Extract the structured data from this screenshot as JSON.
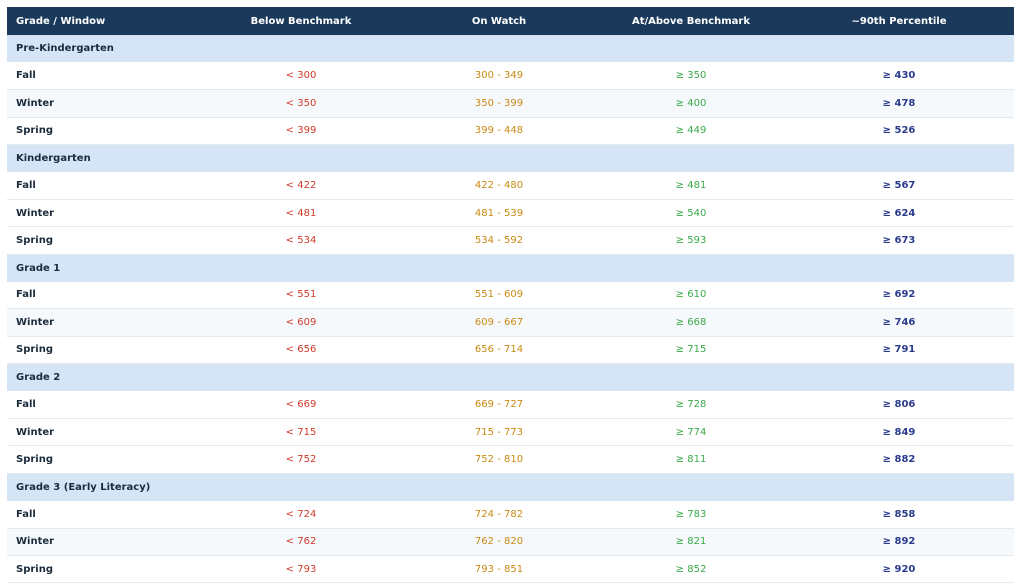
{
  "columns": [
    "Grade / Window",
    "Below Benchmark",
    "On Watch",
    "At/Above Benchmark",
    "~90th Percentile"
  ],
  "colors": {
    "header_bg": "#1b3a5b",
    "grade_bg": "#d6e5f6",
    "below": "#d03a2a",
    "watch": "#c88a12",
    "above": "#3aaa4a",
    "p90": "#2b3b8c"
  },
  "groups": [
    {
      "grade": "Pre-Kindergarten",
      "rows": [
        {
          "window": "Fall",
          "below": "< 300",
          "watch": "300 - 349",
          "above": "≥ 350",
          "p90": "≥ 430"
        },
        {
          "window": "Winter",
          "below": "< 350",
          "watch": "350 - 399",
          "above": "≥ 400",
          "p90": "≥ 478"
        },
        {
          "window": "Spring",
          "below": "< 399",
          "watch": "399 - 448",
          "above": "≥ 449",
          "p90": "≥ 526"
        }
      ]
    },
    {
      "grade": "Kindergarten",
      "rows": [
        {
          "window": "Fall",
          "below": "< 422",
          "watch": "422 - 480",
          "above": "≥ 481",
          "p90": "≥ 567"
        },
        {
          "window": "Winter",
          "below": "< 481",
          "watch": "481 - 539",
          "above": "≥ 540",
          "p90": "≥ 624"
        },
        {
          "window": "Spring",
          "below": "< 534",
          "watch": "534 - 592",
          "above": "≥ 593",
          "p90": "≥ 673"
        }
      ]
    },
    {
      "grade": "Grade 1",
      "rows": [
        {
          "window": "Fall",
          "below": "< 551",
          "watch": "551 - 609",
          "above": "≥ 610",
          "p90": "≥ 692"
        },
        {
          "window": "Winter",
          "below": "< 609",
          "watch": "609 - 667",
          "above": "≥ 668",
          "p90": "≥ 746"
        },
        {
          "window": "Spring",
          "below": "< 656",
          "watch": "656 - 714",
          "above": "≥ 715",
          "p90": "≥ 791"
        }
      ]
    },
    {
      "grade": "Grade 2",
      "rows": [
        {
          "window": "Fall",
          "below": "< 669",
          "watch": "669 - 727",
          "above": "≥ 728",
          "p90": "≥ 806"
        },
        {
          "window": "Winter",
          "below": "< 715",
          "watch": "715 - 773",
          "above": "≥ 774",
          "p90": "≥ 849"
        },
        {
          "window": "Spring",
          "below": "< 752",
          "watch": "752 - 810",
          "above": "≥ 811",
          "p90": "≥ 882"
        }
      ]
    },
    {
      "grade": "Grade 3 (Early Literacy)",
      "rows": [
        {
          "window": "Fall",
          "below": "< 724",
          "watch": "724 - 782",
          "above": "≥ 783",
          "p90": "≥ 858"
        },
        {
          "window": "Winter",
          "below": "< 762",
          "watch": "762 - 820",
          "above": "≥ 821",
          "p90": "≥ 892"
        },
        {
          "window": "Spring",
          "below": "< 793",
          "watch": "793 - 851",
          "above": "≥ 852",
          "p90": "≥ 920"
        }
      ]
    }
  ]
}
